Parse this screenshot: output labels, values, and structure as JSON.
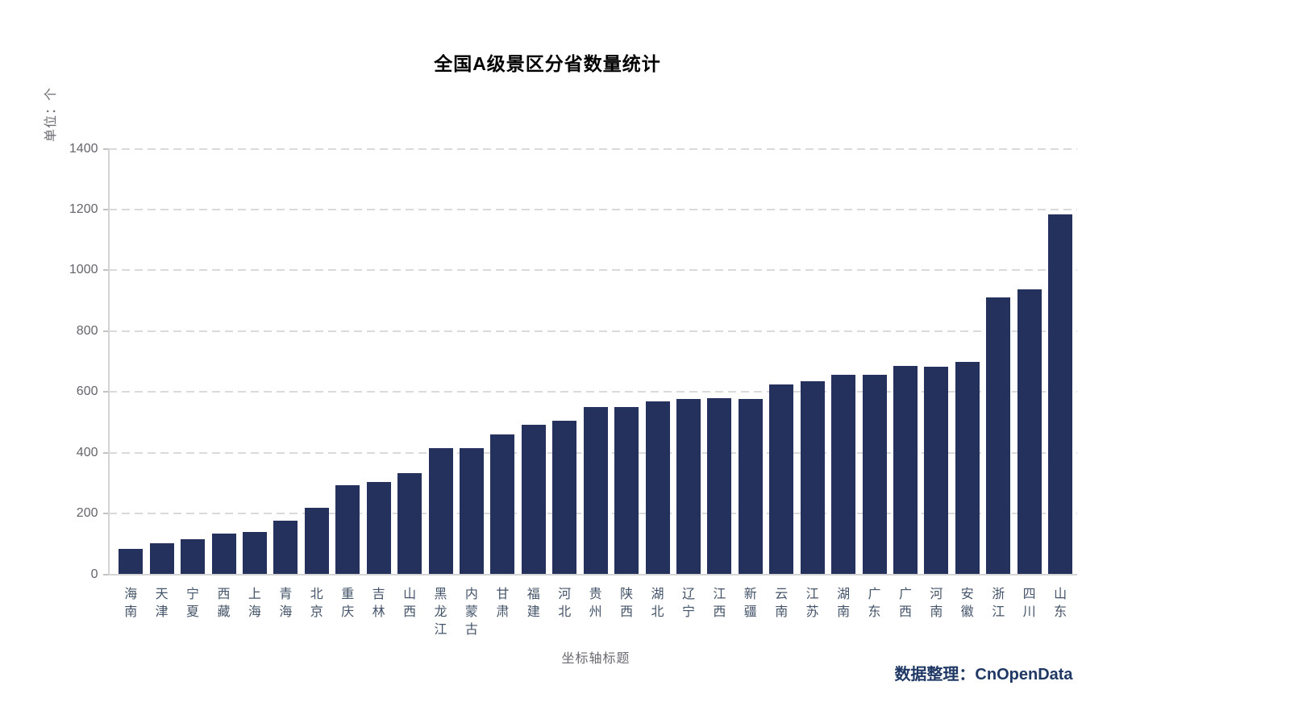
{
  "chart_data": {
    "type": "bar",
    "title": "全国A级景区分省数量统计",
    "ylabel": "单位：个",
    "xlabel": "坐标轴标题",
    "source_note": "数据整理：CnOpenData",
    "categories": [
      "海南",
      "天津",
      "宁夏",
      "西藏",
      "上海",
      "青海",
      "北京",
      "重庆",
      "吉林",
      "山西",
      "黑龙江",
      "内蒙古",
      "甘肃",
      "福建",
      "河北",
      "贵州",
      "陕西",
      "湖北",
      "辽宁",
      "江西",
      "新疆",
      "云南",
      "江苏",
      "湖南",
      "广东",
      "广西",
      "河南",
      "安徽",
      "浙江",
      "四川",
      "山东"
    ],
    "values": [
      84,
      102,
      115,
      135,
      138,
      176,
      218,
      292,
      303,
      332,
      414,
      414,
      459,
      492,
      505,
      549,
      551,
      568,
      576,
      579,
      578,
      624,
      634,
      656,
      657,
      685,
      684,
      698,
      910,
      937,
      1184
    ],
    "yticks": [
      0,
      200,
      400,
      600,
      800,
      1000,
      1200,
      1400
    ],
    "ylim": [
      0,
      1400
    ],
    "grid": "horizontal-dashed",
    "legend": "none",
    "bar_color": "#24315d",
    "axis_color": "#d4d4d4",
    "grid_color": "#dadada",
    "ytick_label_color": "#64646c",
    "category_label_color": "#44546a",
    "title_color": "#000000",
    "source_color": "#1f3864"
  }
}
